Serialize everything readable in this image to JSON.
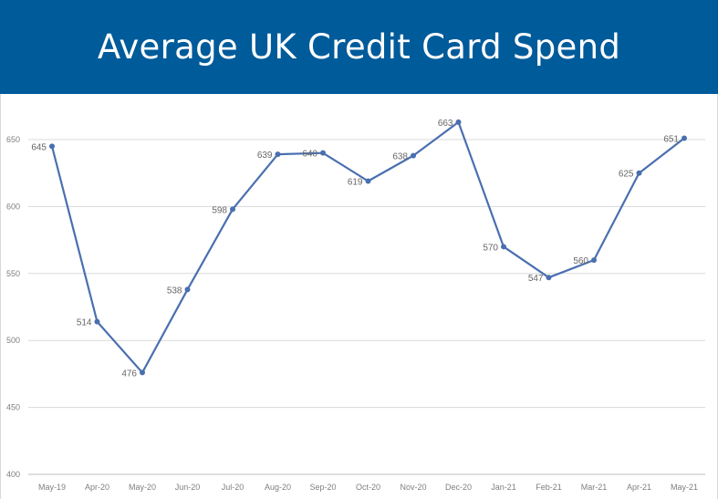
{
  "header": {
    "title": "Average UK Credit Card Spend",
    "background_color": "#005b9a"
  },
  "chart_data": {
    "type": "line",
    "title": "Average UK Credit Card Spend",
    "xlabel": "",
    "ylabel": "",
    "categories": [
      "May-19",
      "Apr-20",
      "May-20",
      "Jun-20",
      "Jul-20",
      "Aug-20",
      "Sep-20",
      "Oct-20",
      "Nov-20",
      "Dec-20",
      "Jan-21",
      "Feb-21",
      "Mar-21",
      "Apr-21",
      "May-21"
    ],
    "series": [
      {
        "values": [
          645,
          514,
          476,
          538,
          598,
          639,
          640,
          619,
          638,
          663,
          570,
          547,
          560,
          625,
          651
        ],
        "color": "#4a6fb0"
      }
    ],
    "data_labels": [
      "645",
      "514",
      "476",
      "538",
      "598",
      "639",
      "640",
      "619",
      "638",
      "663",
      "570",
      "547",
      "560",
      "625",
      "651"
    ],
    "ylim": [
      400,
      650
    ],
    "yticks": [
      "400",
      "450",
      "500",
      "550",
      "600",
      "650"
    ],
    "grid": true,
    "legend": "none"
  }
}
